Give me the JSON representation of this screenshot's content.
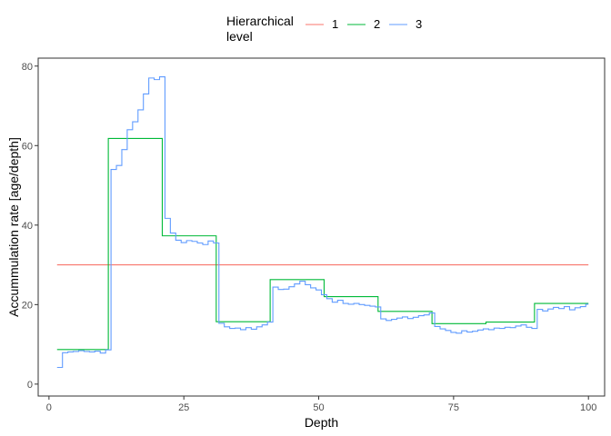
{
  "chart_data": {
    "type": "line",
    "step": true,
    "title": "",
    "xlabel": "Depth",
    "ylabel": "Accummulation rate [age/depth]",
    "xlim": [
      -2,
      103
    ],
    "ylim": [
      -3,
      82
    ],
    "x_ticks": [
      0,
      25,
      50,
      75,
      100
    ],
    "x_tick_labels": [
      "0",
      "25",
      "50",
      "75",
      "100"
    ],
    "y_ticks": [
      0,
      20,
      40,
      60,
      80
    ],
    "y_tick_labels": [
      "0",
      "20",
      "40",
      "60",
      "80"
    ],
    "grid": false,
    "legend": {
      "position": "top",
      "title_line1": "Hierarchical",
      "title_line2": "level"
    },
    "series": [
      {
        "name": "1",
        "color": "#f8766d",
        "breaks": [
          1.5,
          100
        ],
        "values": [
          30
        ]
      },
      {
        "name": "2",
        "color": "#00ba38",
        "breaks": [
          1.5,
          11,
          21,
          31,
          41,
          51,
          61,
          71,
          81,
          90,
          100
        ],
        "values": [
          8.7,
          61.8,
          37.3,
          15.7,
          26.3,
          22.0,
          18.3,
          15.2,
          15.6,
          20.3
        ]
      },
      {
        "name": "3",
        "color": "#619cff",
        "breaks": [
          1.5,
          2.5,
          3.5,
          4.5,
          5.5,
          6.5,
          7.5,
          8.5,
          9.5,
          10.5,
          11.5,
          12.5,
          13.5,
          14.5,
          15.5,
          16.5,
          17.5,
          18.5,
          19.5,
          20.5,
          21.5,
          22.5,
          23.5,
          24.5,
          25.5,
          26.5,
          27.5,
          28.5,
          29.5,
          30.5,
          31.5,
          32.5,
          33.5,
          34.5,
          35.5,
          36.5,
          37.5,
          38.5,
          39.5,
          40.5,
          41.5,
          42.5,
          43.5,
          44.5,
          45.5,
          46.5,
          47.5,
          48.5,
          49.5,
          50.5,
          51.5,
          52.5,
          53.5,
          54.5,
          55.5,
          56.5,
          57.5,
          58.5,
          59.5,
          60.5,
          61.5,
          62.5,
          63.5,
          64.5,
          65.5,
          66.5,
          67.5,
          68.5,
          69.5,
          70.5,
          71.5,
          72.5,
          73.5,
          74.5,
          75.5,
          76.5,
          77.5,
          78.5,
          79.5,
          80.5,
          81.5,
          82.5,
          83.5,
          84.5,
          85.5,
          86.5,
          87.5,
          88.5,
          89.5,
          90.5,
          91.5,
          92.5,
          93.5,
          94.5,
          95.5,
          96.5,
          97.5,
          98.5,
          99.5,
          100
        ],
        "values": [
          4.2,
          7.9,
          8.1,
          8.2,
          8.4,
          8.2,
          8.1,
          8.3,
          7.8,
          8.6,
          54.0,
          55.0,
          59.0,
          64.0,
          66.0,
          69.0,
          73.0,
          77.0,
          76.6,
          77.3,
          41.7,
          38.0,
          36.2,
          35.6,
          36.1,
          35.9,
          35.5,
          35.1,
          36.0,
          35.5,
          15.3,
          14.4,
          14.0,
          14.1,
          13.7,
          14.2,
          13.8,
          14.4,
          14.9,
          15.6,
          24.4,
          23.8,
          23.9,
          24.5,
          25.2,
          25.9,
          25.0,
          24.2,
          23.7,
          22.5,
          21.5,
          20.6,
          21.1,
          20.3,
          20.1,
          20.3,
          20.0,
          19.8,
          19.6,
          19.4,
          16.4,
          16.0,
          16.3,
          16.6,
          16.9,
          16.5,
          16.8,
          17.2,
          17.4,
          17.9,
          14.5,
          13.9,
          13.5,
          13.0,
          12.8,
          13.4,
          13.1,
          13.3,
          13.6,
          13.9,
          13.7,
          14.1,
          14.0,
          14.3,
          14.2,
          14.6,
          14.9,
          14.3,
          14.0,
          18.8,
          18.4,
          18.9,
          19.3,
          19.0,
          19.5,
          18.7,
          19.2,
          19.5,
          20.1
        ]
      }
    ]
  }
}
